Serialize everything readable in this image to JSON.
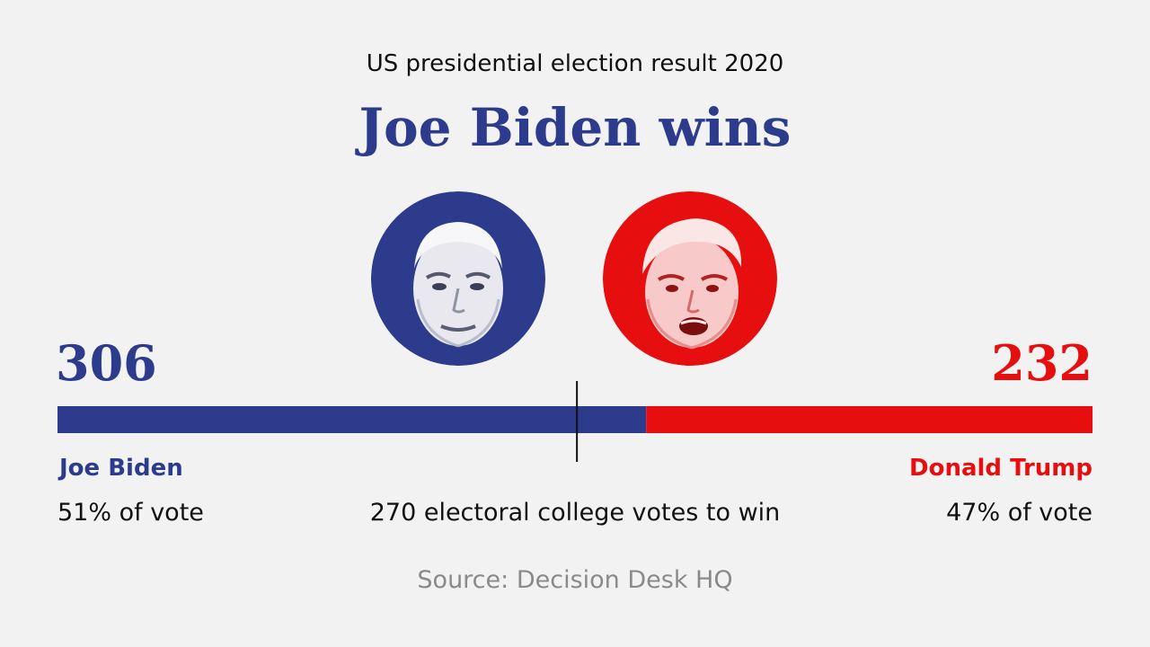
{
  "subtitle": "US presidential election result 2020",
  "headline": "Joe Biden wins",
  "source": "Source: Decision Desk HQ",
  "colors": {
    "biden": "#2d3b8c",
    "trump": "#e60e0e",
    "background": "#f2f2f2",
    "text": "#111111",
    "muted": "#8a8a8a"
  },
  "chart_data": {
    "type": "bar",
    "orientation": "horizontal-stacked",
    "total": 538,
    "threshold": 270,
    "threshold_label": "270 electoral college votes to win",
    "series": [
      {
        "name": "Joe Biden",
        "value": 306,
        "vote_share": "51% of vote",
        "color": "#2d3b8c",
        "icon": "biden-portrait-icon"
      },
      {
        "name": "Donald Trump",
        "value": 232,
        "vote_share": "47% of vote",
        "color": "#e60e0e",
        "icon": "trump-portrait-icon"
      }
    ]
  }
}
